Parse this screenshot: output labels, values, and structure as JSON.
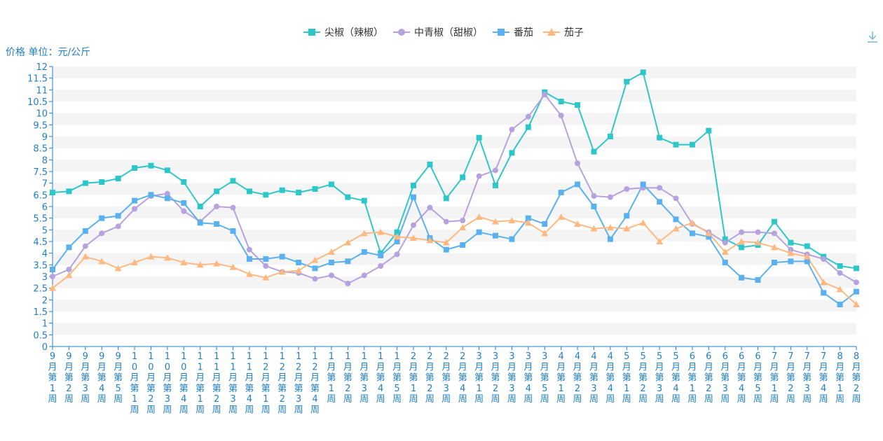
{
  "toolbar": {
    "download_icon": "download-icon"
  },
  "chart_data": {
    "type": "line",
    "title": "",
    "ylabel": "价格 单位：元/公斤",
    "xlabel": "",
    "ylim": [
      0,
      12
    ],
    "ytick_step": 0.5,
    "grid": "horizontal-bands",
    "legend_position": "top-center",
    "categories": [
      "9月第1周",
      "9月第2周",
      "9月第3周",
      "9月第4周",
      "9月第5周",
      "10月第1周",
      "10月第2周",
      "10月第3周",
      "10月第4周",
      "11月第1周",
      "11月第2周",
      "11月第3周",
      "11月第4周",
      "12月第1周",
      "12月第2周",
      "12月第3周",
      "12月第4周",
      "1月第1周",
      "1月第2周",
      "1月第3周",
      "1月第4周",
      "1月第5周",
      "2月第1周",
      "2月第2周",
      "2月第3周",
      "2月第4周",
      "3月第1周",
      "3月第2周",
      "3月第3周",
      "3月第4周",
      "3月第5周",
      "4月第1周",
      "4月第2周",
      "4月第3周",
      "4月第4周",
      "5月第1周",
      "5月第2周",
      "5月第3周",
      "5月第4周",
      "6月第1周",
      "6月第2周",
      "6月第3周",
      "6月第4周",
      "6月第5周",
      "7月第1周",
      "7月第2周",
      "7月第3周",
      "7月第4周",
      "8月第1周",
      "8月第2周"
    ],
    "series": [
      {
        "name": "尖椒（辣椒）",
        "color": "#2ec7c9",
        "marker": "square",
        "values": [
          6.6,
          6.65,
          7.0,
          7.05,
          7.2,
          7.65,
          7.75,
          7.55,
          7.05,
          6.0,
          6.65,
          7.1,
          6.65,
          6.5,
          6.7,
          6.6,
          6.75,
          6.95,
          6.4,
          6.25,
          4.0,
          4.9,
          6.9,
          7.8,
          6.35,
          7.25,
          8.95,
          6.9,
          8.3,
          9.4,
          10.9,
          10.5,
          10.35,
          8.35,
          9.0,
          11.35,
          11.75,
          8.95,
          8.65,
          8.65,
          9.25,
          4.6,
          4.25,
          4.35,
          5.35,
          4.45,
          4.3,
          3.85,
          3.45,
          3.35
        ]
      },
      {
        "name": "中青椒（甜椒）",
        "color": "#b6a2de",
        "marker": "circle",
        "values": [
          3.0,
          3.3,
          4.3,
          4.85,
          5.15,
          5.9,
          6.45,
          6.55,
          5.8,
          5.35,
          6.0,
          5.95,
          4.15,
          3.45,
          3.2,
          3.15,
          2.9,
          3.05,
          2.7,
          3.05,
          3.45,
          3.95,
          5.2,
          5.95,
          5.35,
          5.4,
          7.3,
          7.55,
          9.3,
          9.85,
          10.8,
          9.9,
          7.85,
          6.45,
          6.4,
          6.75,
          6.8,
          6.8,
          6.35,
          5.25,
          4.9,
          4.45,
          4.9,
          4.9,
          4.85,
          4.15,
          3.95,
          3.75,
          3.15,
          2.75
        ]
      },
      {
        "name": "番茄",
        "color": "#5ab1ef",
        "marker": "square",
        "values": [
          3.3,
          4.25,
          4.95,
          5.5,
          5.6,
          6.25,
          6.5,
          6.35,
          6.15,
          5.3,
          5.25,
          4.95,
          3.75,
          3.75,
          3.85,
          3.6,
          3.35,
          3.6,
          3.65,
          4.05,
          3.9,
          4.5,
          6.4,
          4.65,
          4.15,
          4.35,
          4.9,
          4.75,
          4.6,
          5.5,
          5.25,
          6.6,
          6.95,
          6.0,
          4.6,
          5.6,
          6.95,
          6.2,
          5.45,
          4.85,
          4.7,
          3.6,
          2.95,
          2.85,
          3.6,
          3.65,
          3.65,
          2.3,
          1.8,
          2.35
        ]
      },
      {
        "name": "茄子",
        "color": "#ffb980",
        "marker": "triangle",
        "values": [
          2.5,
          3.05,
          3.85,
          3.65,
          3.35,
          3.6,
          3.85,
          3.8,
          3.6,
          3.5,
          3.55,
          3.4,
          3.1,
          2.95,
          3.2,
          3.25,
          3.7,
          4.05,
          4.45,
          4.85,
          4.9,
          4.7,
          4.65,
          4.55,
          4.45,
          5.1,
          5.55,
          5.35,
          5.4,
          5.3,
          4.85,
          5.55,
          5.25,
          5.05,
          5.1,
          5.05,
          5.3,
          4.5,
          5.05,
          5.3,
          4.85,
          4.05,
          4.5,
          4.45,
          4.25,
          4.0,
          3.85,
          2.75,
          2.45,
          1.8
        ]
      }
    ]
  }
}
